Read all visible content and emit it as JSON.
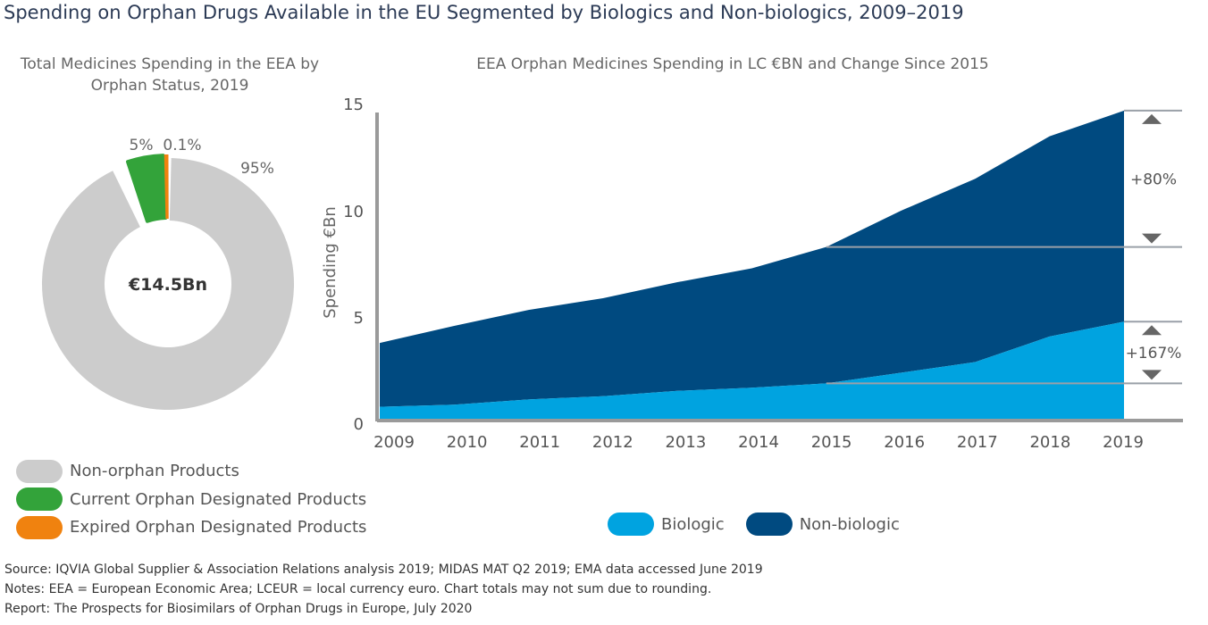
{
  "title": "Spending on Orphan Drugs Available in the EU Segmented by Biologics and Non-biologics, 2009–2019",
  "colors": {
    "non_orphan": "#cccccc",
    "current_orphan": "#33a33a",
    "expired_orphan": "#f0820f",
    "biologic": "#00a3e0",
    "non_biologic": "#004a80",
    "axis": "#9a9a9a"
  },
  "footnotes": {
    "source": "Source: IQVIA Global Supplier & Association Relations analysis 2019; MIDAS MAT Q2 2019; EMA data accessed June 2019",
    "notes": "Notes: EEA = European Economic Area; LCEUR = local currency euro. Chart totals may not sum due to rounding.",
    "report": "Report: The Prospects for Biosimilars of Orphan Drugs in Europe, July 2020"
  },
  "chart_data": [
    {
      "type": "pie",
      "title": "Total Medicines Spending in the EEA by Orphan Status, 2019",
      "center_label": "€14.5Bn",
      "slices": [
        {
          "name": "Non-orphan Products",
          "value": 95,
          "label": "95%",
          "color": "#cccccc"
        },
        {
          "name": "Current Orphan Designated Products",
          "value": 5,
          "label": "5%",
          "color": "#33a33a"
        },
        {
          "name": "Expired Orphan Designated Products",
          "value": 0.1,
          "label": "0.1%",
          "color": "#f0820f"
        }
      ],
      "legend": [
        "Non-orphan Products",
        "Current Orphan Designated Products",
        "Expired Orphan Designated Products"
      ]
    },
    {
      "type": "area",
      "stacked": true,
      "title": "EEA Orphan Medicines Spending in LC €BN and Change Since 2015",
      "ylabel": "Spending €Bn",
      "xlabel": "",
      "ylim": [
        0,
        15
      ],
      "yticks": [
        0,
        5,
        10,
        15
      ],
      "x": [
        "2009",
        "2010",
        "2011",
        "2012",
        "2013",
        "2014",
        "2015",
        "2016",
        "2017",
        "2018",
        "2019"
      ],
      "series": [
        {
          "name": "Biologic",
          "color": "#00a3e0",
          "values": [
            0.6,
            0.7,
            0.95,
            1.1,
            1.35,
            1.5,
            1.7,
            2.2,
            2.7,
            3.9,
            4.6
          ]
        },
        {
          "name": "Non-biologic",
          "color": "#004a80",
          "values": [
            3.0,
            3.7,
            4.2,
            4.6,
            5.1,
            5.6,
            6.4,
            7.6,
            8.6,
            9.4,
            9.9
          ]
        }
      ],
      "annotations": [
        {
          "label": "+80%",
          "series": "Total",
          "from_year": "2015",
          "to_year": "2019"
        },
        {
          "label": "+167%",
          "series": "Biologic",
          "from_year": "2015",
          "to_year": "2019"
        }
      ],
      "legend": [
        "Biologic",
        "Non-biologic"
      ]
    }
  ]
}
